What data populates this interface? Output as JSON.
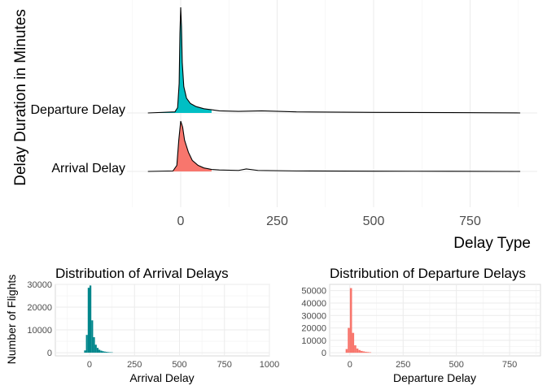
{
  "chart_data": [
    {
      "type": "area",
      "subtype": "ridgeline",
      "title": "",
      "xlabel": "Delay Type",
      "ylabel": "Delay Duration in Minutes",
      "xlim": [
        -85,
        880
      ],
      "xticks": [
        0,
        250,
        500,
        750
      ],
      "xtick_labels": [
        "0",
        "250",
        "500",
        "750"
      ],
      "grid": true,
      "legend": "none",
      "categories": [
        "Arrival Delay",
        "Departure Delay"
      ],
      "series": [
        {
          "name": "Arrival Delay",
          "color": "#F8766D",
          "x": [
            -85,
            -20,
            -10,
            -5,
            0,
            5,
            10,
            20,
            30,
            45,
            60,
            80,
            100,
            150,
            170,
            200,
            300,
            500,
            700,
            880
          ],
          "y": [
            0,
            0.01,
            0.12,
            0.62,
            1.0,
            0.88,
            0.62,
            0.38,
            0.22,
            0.12,
            0.07,
            0.04,
            0.03,
            0.02,
            0.05,
            0.02,
            0.01,
            0.005,
            0.003,
            0
          ]
        },
        {
          "name": "Departure Delay",
          "color": "#00BFC4",
          "x": [
            -85,
            -15,
            -8,
            -4,
            -2,
            0,
            2,
            4,
            8,
            15,
            25,
            40,
            60,
            80,
            100,
            150,
            210,
            300,
            500,
            700,
            880
          ],
          "y": [
            0,
            0.01,
            0.05,
            0.28,
            0.75,
            1.0,
            0.82,
            0.48,
            0.25,
            0.14,
            0.09,
            0.06,
            0.04,
            0.03,
            0.02,
            0.015,
            0.02,
            0.01,
            0.005,
            0.003,
            0
          ]
        }
      ]
    },
    {
      "type": "bar",
      "subtype": "histogram",
      "title": "Distribution of Arrival Delays",
      "xlabel": "Arrival Delay",
      "ylabel": "Number of Flights",
      "xlim": [
        -190,
        1000
      ],
      "ylim": [
        -1400,
        30000
      ],
      "xticks": [
        0,
        250,
        500,
        750,
        1000
      ],
      "xtick_labels": [
        "0",
        "250",
        "500",
        "750",
        "1000"
      ],
      "yticks": [
        0,
        10000,
        20000,
        30000
      ],
      "ytick_labels": [
        "0",
        "10000",
        "20000",
        "30000"
      ],
      "grid": true,
      "color": "#00868B",
      "bin_width": 10,
      "bins": [
        -30,
        -20,
        -10,
        0,
        10,
        20,
        30,
        40,
        50,
        60,
        70,
        80,
        90,
        100,
        110,
        120
      ],
      "values": [
        1000,
        7800,
        28500,
        29500,
        14200,
        6800,
        3500,
        2100,
        1300,
        900,
        650,
        480,
        350,
        260,
        200,
        150
      ]
    },
    {
      "type": "bar",
      "subtype": "histogram",
      "title": "Distribution of Departure Delays",
      "xlabel": "Departure Delay",
      "ylabel": "",
      "xlim": [
        -95,
        895
      ],
      "ylim": [
        -2500,
        55000
      ],
      "xticks": [
        0,
        250,
        500,
        750
      ],
      "xtick_labels": [
        "0",
        "250",
        "500",
        "750"
      ],
      "yticks": [
        0,
        10000,
        20000,
        30000,
        40000,
        50000
      ],
      "ytick_labels": [
        "0",
        "10000",
        "20000",
        "30000",
        "40000",
        "50000"
      ],
      "grid": true,
      "color": "#F8766D",
      "bin_width": 10,
      "bins": [
        -20,
        -10,
        0,
        10,
        20,
        30,
        40,
        50,
        60,
        70,
        80,
        90
      ],
      "values": [
        3000,
        20000,
        52000,
        16000,
        6000,
        3400,
        2200,
        1500,
        1100,
        800,
        600,
        400
      ]
    }
  ]
}
